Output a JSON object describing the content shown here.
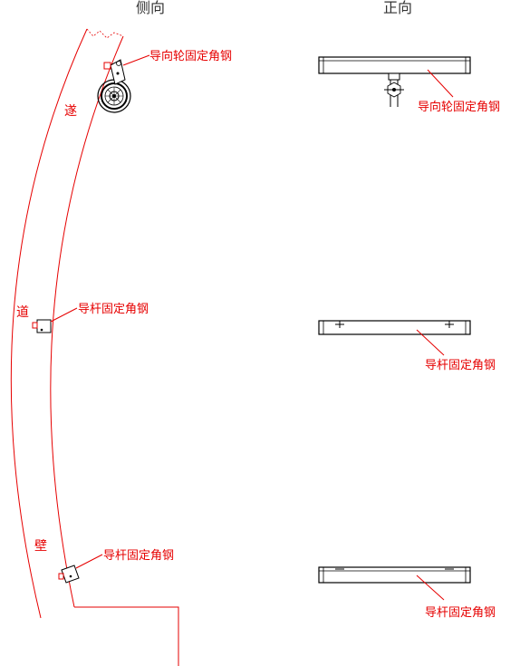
{
  "headers": {
    "side": "侧向",
    "front": "正向"
  },
  "tunnel_wall_chars": [
    "遂",
    "道",
    "壁"
  ],
  "side_labels": {
    "guide_wheel": "导向轮固定角钢",
    "guide_rod_1": "导杆固定角钢",
    "guide_rod_2": "导杆固定角钢"
  },
  "front_labels": {
    "guide_wheel": "导向轮固定角钢",
    "guide_rod_1": "导杆固定角钢",
    "guide_rod_2": "导杆固定角钢"
  },
  "colors": {
    "annotation": "#e60000",
    "drawing": "#000000",
    "header": "#333333"
  }
}
